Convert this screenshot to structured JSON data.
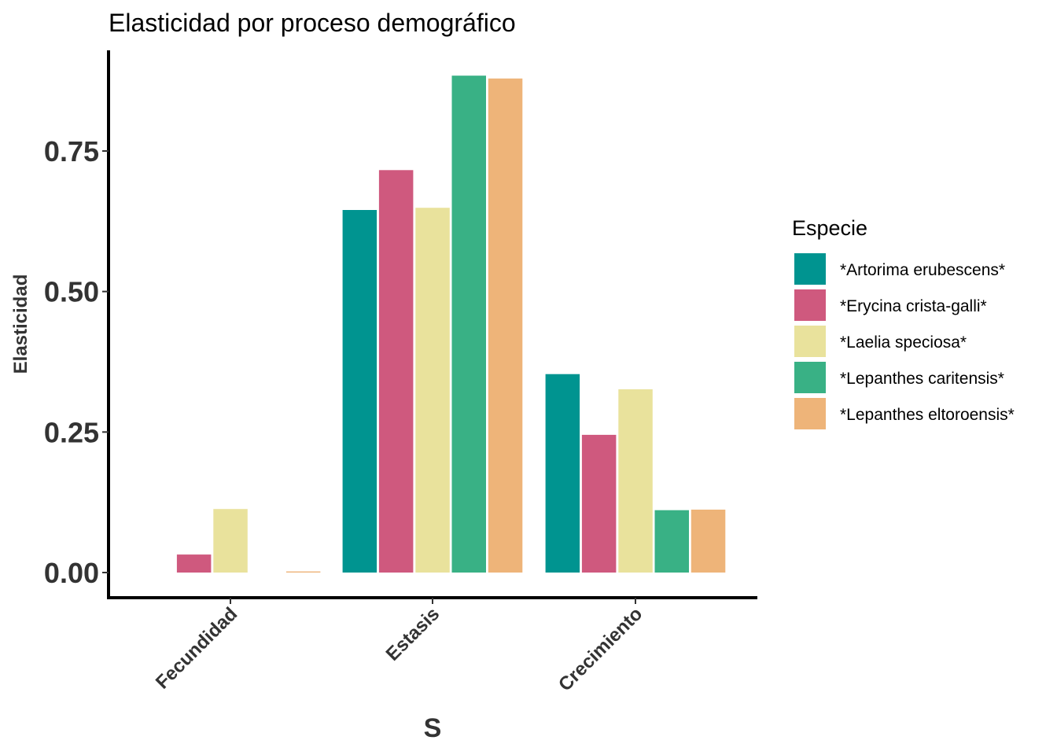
{
  "chart_data": {
    "type": "bar",
    "title": "Elasticidad por proceso demográfico",
    "xlabel": "S",
    "ylabel": "Elasticidad",
    "categories": [
      "Fecundidad",
      "Estasis",
      "Crecimiento"
    ],
    "ylim": [
      -0.045,
      0.93
    ],
    "yticks": [
      0.0,
      0.25,
      0.5,
      0.75
    ],
    "ytick_labels": [
      "0.00",
      "0.25",
      "0.50",
      "0.75"
    ],
    "grid": false,
    "legend": {
      "title": "Especie",
      "position": "right"
    },
    "series": [
      {
        "name": "*Artorima erubescens*",
        "color": "#009490",
        "values": [
          0.0,
          0.645,
          0.353
        ]
      },
      {
        "name": "*Erycina crista-galli*",
        "color": "#CF597E",
        "values": [
          0.032,
          0.716,
          0.245
        ]
      },
      {
        "name": "*Laelia speciosa*",
        "color": "#E9E29C",
        "values": [
          0.113,
          0.649,
          0.326
        ]
      },
      {
        "name": "*Lepanthes caritensis*",
        "color": "#39B185",
        "values": [
          0.0,
          0.884,
          0.111
        ]
      },
      {
        "name": "*Lepanthes eltoroensis*",
        "color": "#EEB479",
        "values": [
          0.002,
          0.879,
          0.112
        ]
      }
    ]
  }
}
